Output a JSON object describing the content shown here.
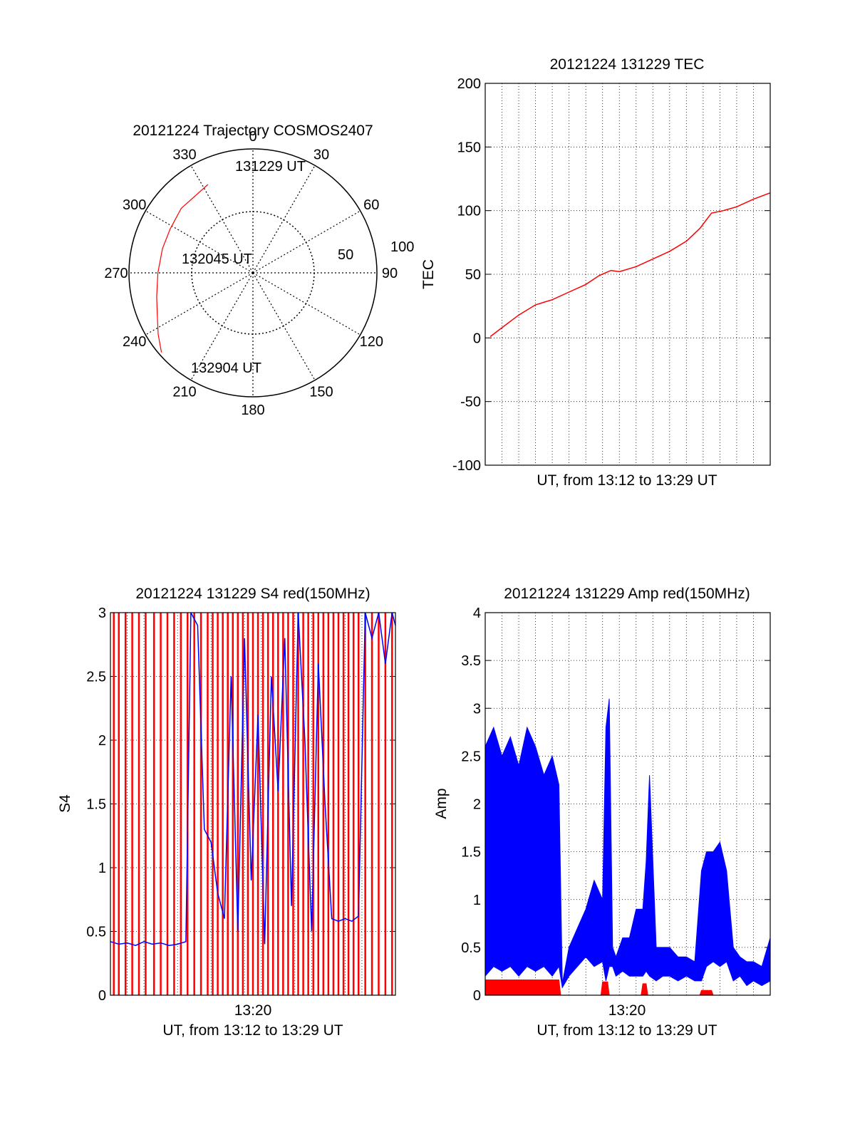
{
  "colors": {
    "red": "#ff0000",
    "blue": "#0000ff",
    "axis": "#000000",
    "grid": "#000000"
  },
  "chart_data": [
    {
      "type": "polar",
      "title": "20121224 Trajectory COSMOS2407",
      "angle_labels": [
        "0",
        "30",
        "60",
        "90",
        "120",
        "150",
        "180",
        "210",
        "240",
        "270",
        "300",
        "330"
      ],
      "radial_labels": [
        "50",
        "100"
      ],
      "track_annotations": [
        "131229 UT",
        "132045 UT",
        "132904 UT"
      ],
      "series": [
        {
          "color": "#ff0000",
          "points": [
            {
              "az": 333,
              "el": 18
            },
            {
              "az": 312,
              "el": 20
            },
            {
              "az": 298,
              "el": 22
            },
            {
              "az": 285,
              "el": 22
            },
            {
              "az": 270,
              "el": 21
            },
            {
              "az": 256,
              "el": 18
            },
            {
              "az": 246,
              "el": 14
            },
            {
              "az": 237,
              "el": 8
            },
            {
              "az": 229,
              "el": 2
            }
          ]
        }
      ]
    },
    {
      "type": "line",
      "title": "20121224 131229 TEC",
      "xlabel": "UT, from 13:12 to 13:29 UT",
      "ylabel": "TEC",
      "xlim": [
        0,
        17
      ],
      "ylim": [
        -100,
        200
      ],
      "yticks": [
        "-100",
        "-50",
        "0",
        "50",
        "100",
        "150",
        "200"
      ],
      "grid": true,
      "series": [
        {
          "color": "#ff0000",
          "x": [
            0.3,
            1,
            2,
            3,
            4,
            5,
            6,
            6.8,
            7.5,
            8,
            9,
            10,
            11,
            12,
            12.8,
            13.5,
            14.2,
            15,
            16,
            17
          ],
          "y": [
            1,
            8,
            18,
            26,
            30,
            36,
            42,
            49,
            53,
            52,
            56,
            62,
            68,
            76,
            86,
            98,
            100,
            103,
            109,
            114
          ]
        }
      ]
    },
    {
      "type": "line",
      "title": "20121224 131229 S4 red(150MHz)",
      "xlabel": "UT, from 13:12 to 13:29 UT",
      "ylabel": "S4",
      "xlim": [
        0,
        17
      ],
      "ylim": [
        0,
        3
      ],
      "yticks": [
        "0",
        "0.5",
        "1",
        "1.5",
        "2",
        "2.5",
        "3"
      ],
      "xtick_label": "13:20",
      "grid": true,
      "series": [
        {
          "color": "#ff0000",
          "style": "spikes",
          "x": [
            0.2,
            0.5,
            0.9,
            1.3,
            1.7,
            2.1,
            2.6,
            3.0,
            3.4,
            3.8,
            4.2,
            4.6,
            5.0,
            5.4,
            5.8,
            6.1,
            6.4,
            6.7,
            7.0,
            7.3,
            7.6,
            7.9,
            8.2,
            8.5,
            8.8,
            9.1,
            9.4,
            9.7,
            10.0,
            10.3,
            10.6,
            10.9,
            11.2,
            11.5,
            11.8,
            12.1,
            12.4,
            12.7,
            13.0,
            13.3,
            13.6,
            13.9,
            14.2,
            14.5,
            14.8,
            15.2,
            15.6,
            16.0,
            16.4,
            16.8
          ],
          "y": [
            3,
            3,
            3,
            3,
            3,
            3,
            3,
            3,
            3,
            3,
            3,
            3,
            3,
            3,
            3,
            3,
            3,
            3,
            3,
            3,
            3,
            3,
            3,
            3,
            3,
            3,
            3,
            3,
            3,
            3,
            3,
            3,
            3,
            3,
            3,
            3,
            3,
            3,
            3,
            3,
            3,
            3,
            3,
            3,
            3,
            3,
            3,
            3,
            3,
            3
          ]
        },
        {
          "color": "#0000ff",
          "x": [
            0,
            0.5,
            1,
            1.5,
            2,
            2.5,
            3,
            3.5,
            4,
            4.5,
            4.8,
            5.2,
            5.6,
            6.0,
            6.4,
            6.8,
            7.2,
            7.6,
            8.0,
            8.4,
            8.8,
            9.2,
            9.6,
            10.0,
            10.4,
            10.8,
            11.2,
            11.6,
            12.0,
            12.4,
            12.8,
            13.2,
            13.6,
            14.0,
            14.4,
            14.8,
            15.2,
            15.6,
            16.0,
            16.4,
            16.8,
            17
          ],
          "y": [
            0.42,
            0.4,
            0.41,
            0.39,
            0.42,
            0.4,
            0.41,
            0.39,
            0.4,
            0.42,
            3.0,
            2.9,
            1.3,
            1.2,
            0.8,
            0.6,
            2.5,
            0.5,
            2.8,
            0.9,
            2.2,
            0.4,
            2.5,
            1.6,
            2.8,
            0.7,
            3.0,
            2.0,
            0.5,
            2.6,
            1.5,
            0.6,
            0.58,
            0.6,
            0.58,
            0.62,
            3.0,
            2.8,
            3.0,
            2.6,
            3.0,
            2.9
          ]
        }
      ]
    },
    {
      "type": "line",
      "title": "20121224 131229 Amp red(150MHz)",
      "xlabel": "UT, from 13:12 to 13:29 UT",
      "ylabel": "Amp",
      "xlim": [
        0,
        17
      ],
      "ylim": [
        0,
        4
      ],
      "yticks": [
        "0",
        "0.5",
        "1",
        "1.5",
        "2",
        "2.5",
        "3",
        "3.5",
        "4"
      ],
      "xtick_label": "13:20",
      "grid": true,
      "series": [
        {
          "color": "#0000ff",
          "style": "envelope",
          "x": [
            0,
            0.5,
            1,
            1.5,
            2,
            2.5,
            3,
            3.5,
            4,
            4.4,
            4.6,
            5,
            5.5,
            6,
            6.5,
            7,
            7.2,
            7.4,
            7.6,
            7.8,
            8.2,
            8.6,
            9,
            9.4,
            9.6,
            9.8,
            10.2,
            10.6,
            11,
            11.5,
            12,
            12.5,
            12.9,
            13.2,
            13.6,
            14,
            14.4,
            14.8,
            15.2,
            15.6,
            16,
            16.5,
            17
          ],
          "lo": [
            0.2,
            0.3,
            0.25,
            0.3,
            0.2,
            0.3,
            0.25,
            0.3,
            0.2,
            0.3,
            0.08,
            0.2,
            0.3,
            0.4,
            0.3,
            0.35,
            0.15,
            0.3,
            0.3,
            0.2,
            0.25,
            0.2,
            0.2,
            0.2,
            0.25,
            0.2,
            0.15,
            0.2,
            0.2,
            0.15,
            0.2,
            0.15,
            0.15,
            0.3,
            0.35,
            0.3,
            0.35,
            0.15,
            0.2,
            0.1,
            0.15,
            0.1,
            0.15
          ],
          "hi": [
            2.6,
            2.8,
            2.5,
            2.7,
            2.4,
            2.8,
            2.6,
            2.3,
            2.5,
            2.2,
            0.12,
            0.5,
            0.7,
            0.9,
            1.2,
            1.0,
            2.8,
            3.1,
            0.5,
            0.4,
            0.6,
            0.6,
            0.9,
            0.9,
            1.4,
            2.3,
            0.5,
            0.5,
            0.5,
            0.4,
            0.4,
            0.35,
            1.3,
            1.5,
            1.5,
            1.6,
            1.3,
            0.5,
            0.4,
            0.35,
            0.35,
            0.3,
            0.6
          ]
        },
        {
          "color": "#ff0000",
          "style": "envelope",
          "x": [
            0,
            4.4,
            4.5,
            6.9,
            7.0,
            7.3,
            7.4,
            9.3,
            9.4,
            9.6,
            9.7,
            12.8,
            12.9,
            13.5,
            13.6,
            17
          ],
          "lo": [
            0,
            0,
            0,
            0,
            0,
            0,
            0,
            0,
            0,
            0,
            0,
            0,
            0,
            0,
            0,
            0
          ],
          "hi": [
            0.16,
            0.16,
            0,
            0,
            0.14,
            0.14,
            0,
            0,
            0.12,
            0.12,
            0,
            0,
            0.05,
            0.05,
            0,
            0
          ]
        }
      ]
    }
  ]
}
